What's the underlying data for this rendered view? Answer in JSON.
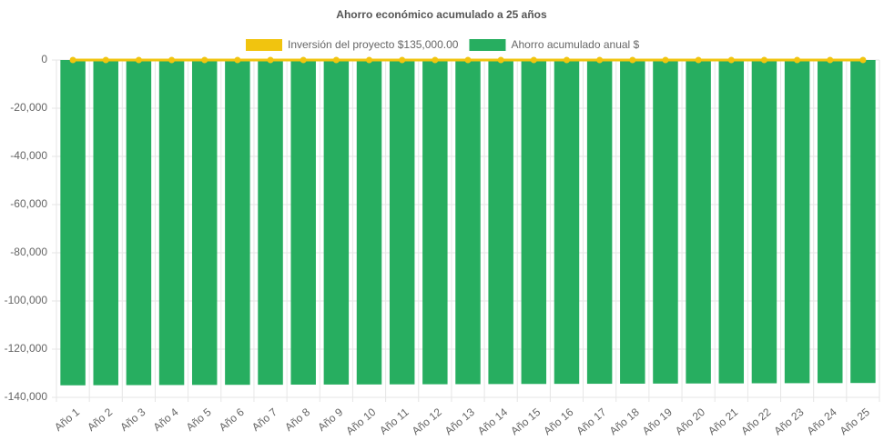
{
  "chart_data": {
    "type": "bar-line",
    "title": "Ahorro económico acumulado a 25 años",
    "categories": [
      "Año 1",
      "Año 2",
      "Año 3",
      "Año 4",
      "Año 5",
      "Año 6",
      "Año 7",
      "Año 8",
      "Año 9",
      "Año 10",
      "Año 11",
      "Año 12",
      "Año 13",
      "Año 14",
      "Año 15",
      "Año 16",
      "Año 17",
      "Año 18",
      "Año 19",
      "Año 20",
      "Año 21",
      "Año 22",
      "Año 23",
      "Año 24",
      "Año 25"
    ],
    "series": [
      {
        "name": "Inversión del proyecto $135,000.00",
        "color": "#f1c40f",
        "kind": "line",
        "values": [
          0,
          0,
          0,
          0,
          0,
          0,
          0,
          0,
          0,
          0,
          0,
          0,
          0,
          0,
          0,
          0,
          0,
          0,
          0,
          0,
          0,
          0,
          0,
          0,
          0
        ]
      },
      {
        "name": "Ahorro acumulado anual $",
        "color": "#27ae60",
        "kind": "bar",
        "values": [
          -135000,
          -134960,
          -134920,
          -134880,
          -134840,
          -134800,
          -134760,
          -134720,
          -134680,
          -134640,
          -134600,
          -134560,
          -134520,
          -134480,
          -134440,
          -134400,
          -134360,
          -134320,
          -134280,
          -134240,
          -134200,
          -134160,
          -134120,
          -134080,
          -134040
        ]
      }
    ],
    "ylim": [
      -140000,
      0
    ],
    "yticks": [
      0,
      {
        "value": -20000,
        "label": "-20,000"
      },
      {
        "value": -40000,
        "label": "-40,000"
      },
      {
        "value": -60000,
        "label": "-60,000"
      },
      {
        "value": -80000,
        "label": "-80,000"
      },
      {
        "value": -100000,
        "label": "-100,000"
      },
      {
        "value": -120000,
        "label": "-120,000"
      },
      {
        "value": -140000,
        "label": "-140,000"
      }
    ],
    "grid": true
  }
}
